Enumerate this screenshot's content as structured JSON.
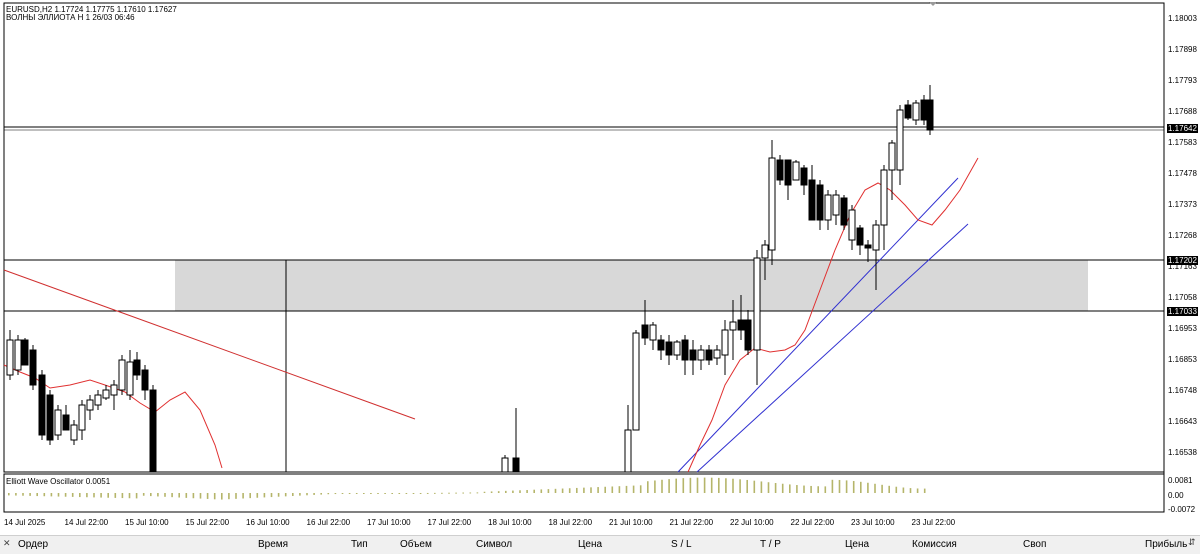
{
  "chart": {
    "symbol_line": "EURUSD,H2  1.17724 1.17775 1.17610 1.17627",
    "indicator_line": "ВОЛНЫ ЭЛЛИОТА H 1 26/03 06:46",
    "price_axis": [
      "1.18003",
      "1.17898",
      "1.17793",
      "1.17688",
      "1.17583",
      "1.17478",
      "1.17373",
      "1.17268",
      "1.17163",
      "1.17058",
      "1.16953",
      "1.16853",
      "1.16748",
      "1.16643",
      "1.16538"
    ],
    "highlighted_prices": [
      "1.17642",
      "1.17202",
      "1.17033"
    ],
    "time_axis": [
      "14 Jul 2025",
      "14 Jul 22:00",
      "15 Jul 10:00",
      "15 Jul 22:00",
      "16 Jul 10:00",
      "16 Jul 22:00",
      "17 Jul 10:00",
      "17 Jul 22:00",
      "18 Jul 10:00",
      "18 Jul 22:00",
      "21 Jul 10:00",
      "21 Jul 22:00",
      "22 Jul 10:00",
      "22 Jul 22:00",
      "23 Jul 10:00",
      "23 Jul 22:00"
    ],
    "oscillator_title": "Elliott Wave Oscillator 0.0051",
    "oscillator_axis": [
      "0.0081",
      "0.00",
      "-0.0072"
    ],
    "colors": {
      "ma": "#e03030",
      "trend_blue": "#3030d0",
      "trend_red": "#d03030",
      "zone": "#d8d8d8",
      "osc": "#b5b56a"
    }
  },
  "terminal": {
    "columns": [
      "Ордер",
      "Время",
      "Тип",
      "Объем",
      "Символ",
      "Цена",
      "S / L",
      "T / P",
      "Цена",
      "Комиссия",
      "Своп",
      "Прибыль"
    ]
  }
}
